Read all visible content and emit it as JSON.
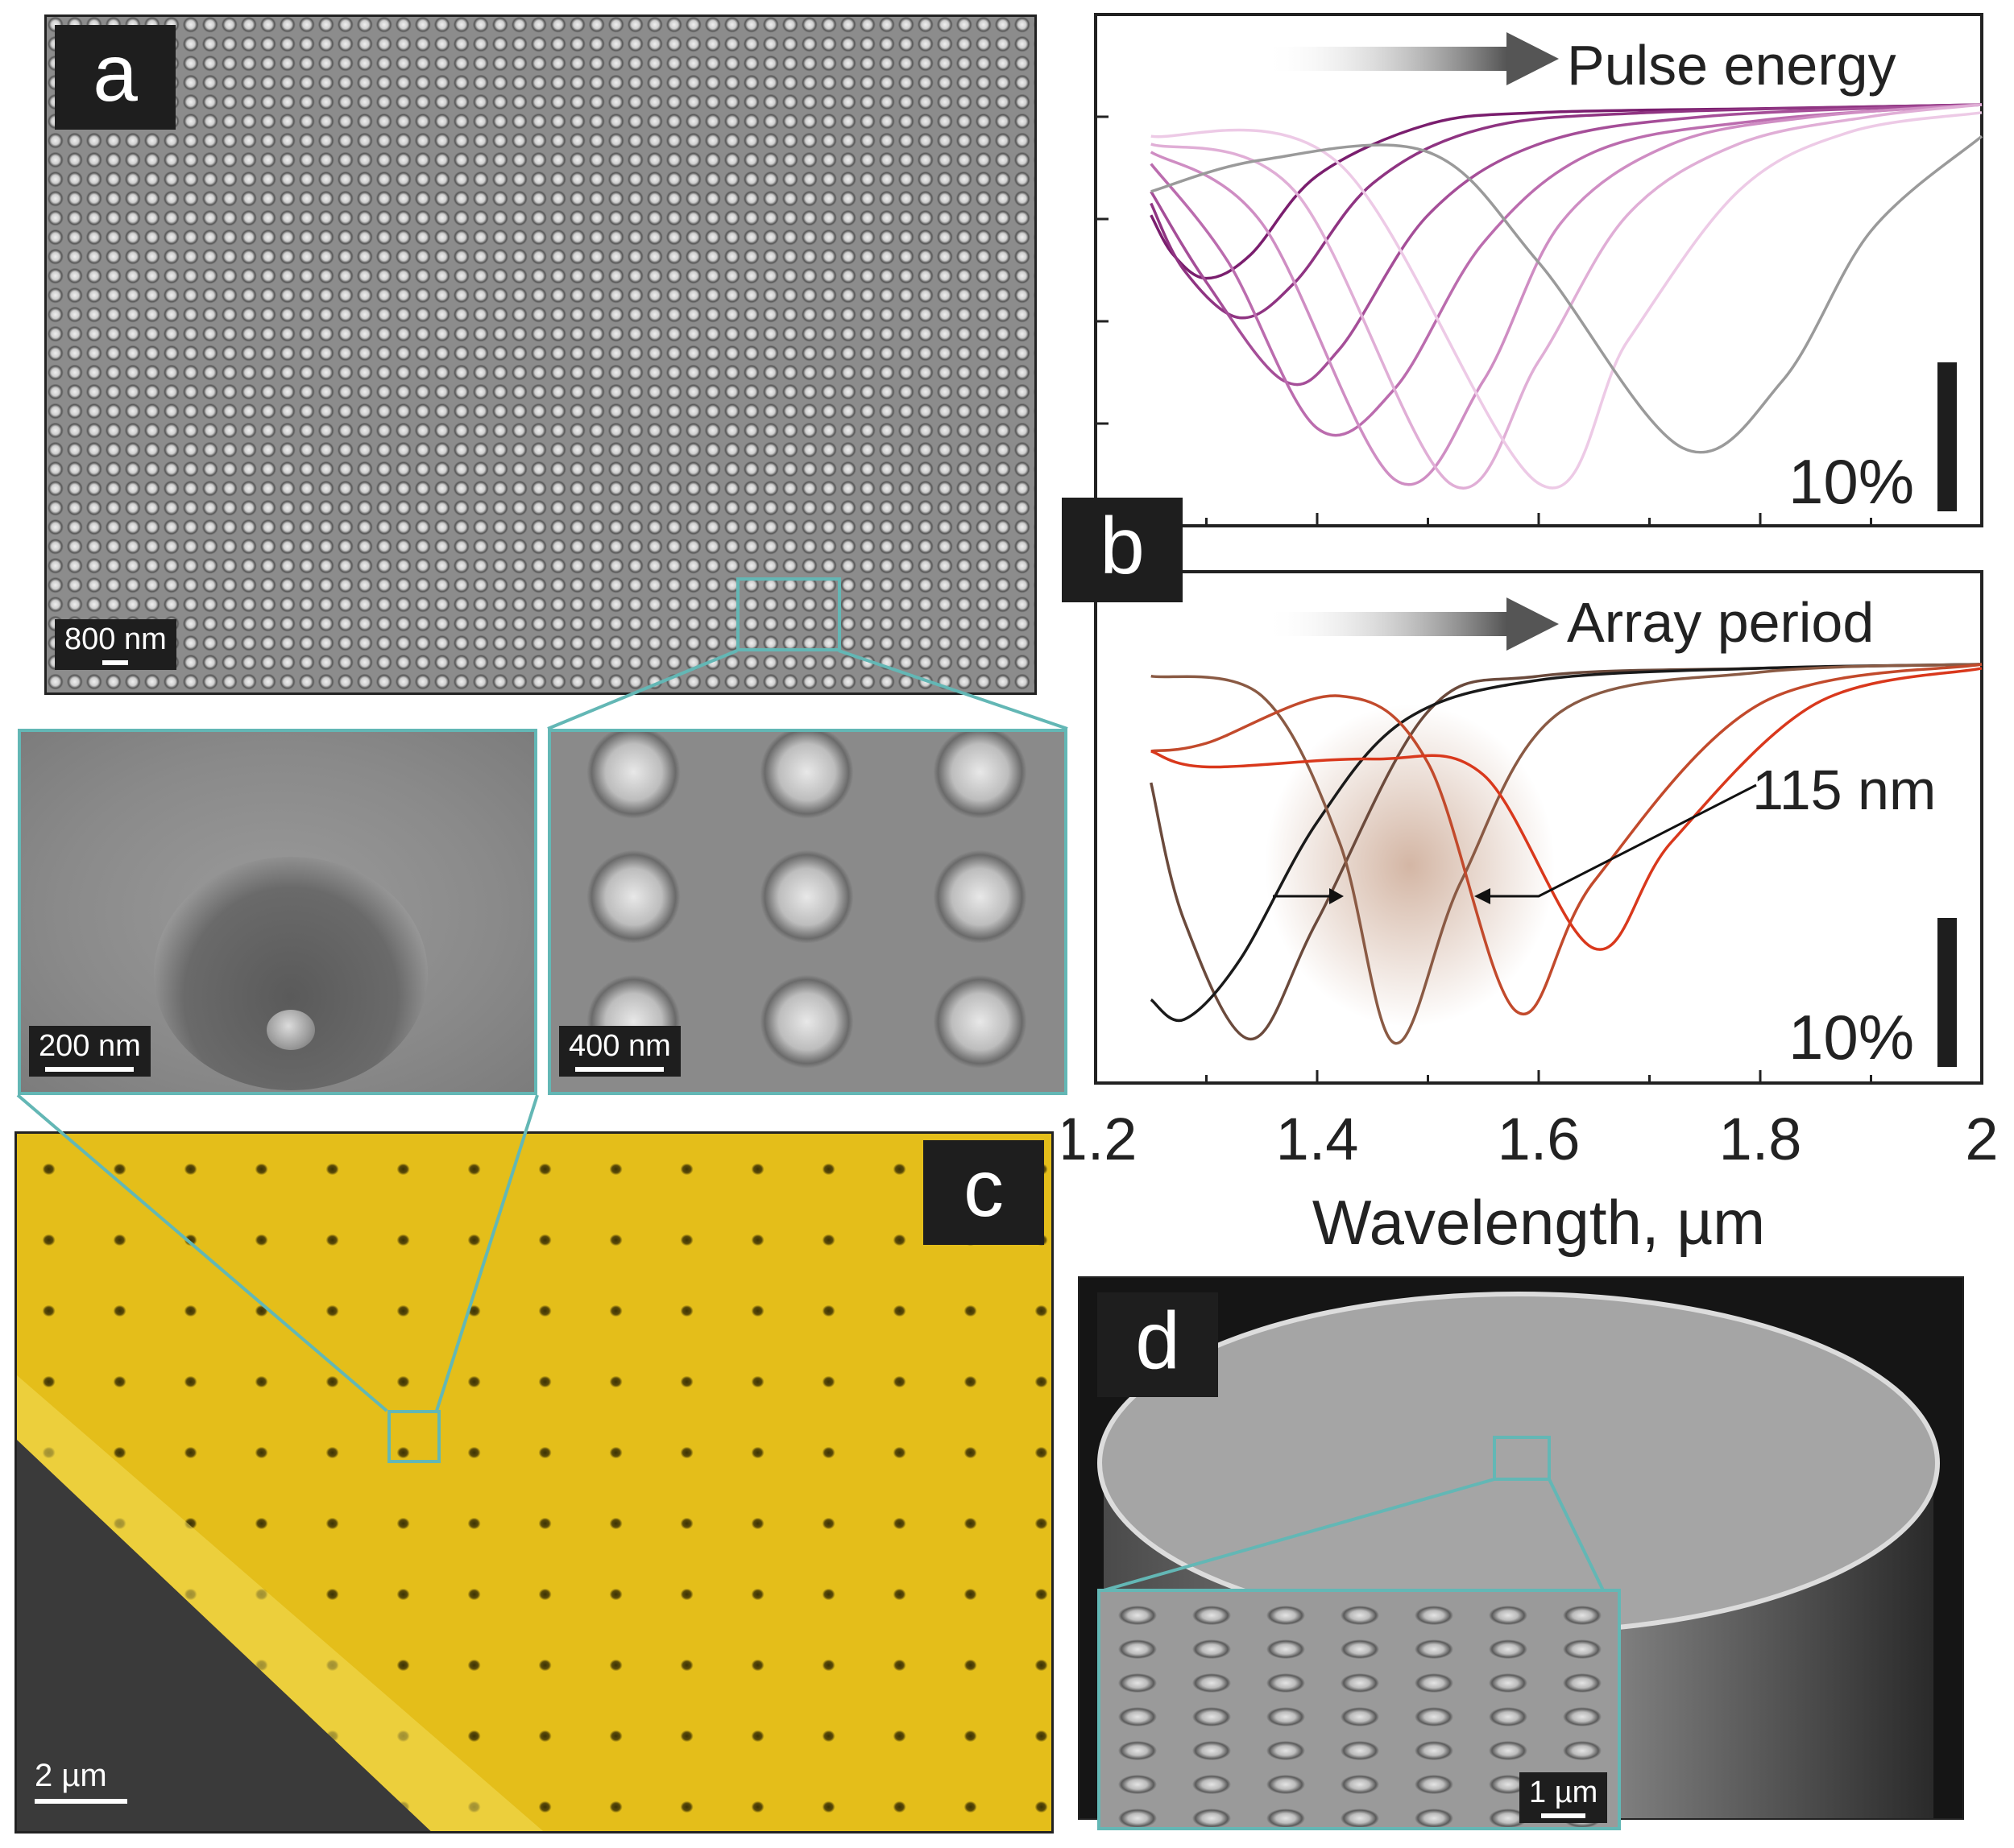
{
  "panels": {
    "a": {
      "label": "a",
      "scale_bar": "800 nm"
    },
    "a_inset_left": {
      "scale_bar": "200 nm"
    },
    "a_inset_right": {
      "scale_bar": "400 nm"
    },
    "b": {
      "label": "b"
    },
    "c": {
      "label": "c",
      "scale_bar": "2 µm"
    },
    "d": {
      "label": "d",
      "scale_bar": "1 µm"
    }
  },
  "colors": {
    "inset_frame": "#63b7b5",
    "label_bg": "#1e1e1e",
    "gold": "#e7c21a",
    "pink_series": [
      "#7a1e6e",
      "#8f3482",
      "#a54e98",
      "#bb6cae",
      "#cf8dc3",
      "#e0aed6",
      "#edcae6"
    ],
    "grey_series": "#9a9a9a",
    "brown_red_series": [
      "#6b4a3c",
      "#1a1a1a",
      "#8a5a44",
      "#c24a2c",
      "#d9381c"
    ]
  },
  "chart_data": [
    {
      "type": "line",
      "annotation": "Pulse energy",
      "scale_bar_label": "10%",
      "xlim": [
        1.2,
        2.0
      ],
      "series": [
        {
          "x": [
            1.25,
            1.27,
            1.3,
            1.34,
            1.4,
            1.5,
            1.6,
            1.8,
            2.0
          ],
          "y": [
            0.72,
            0.62,
            0.56,
            0.62,
            0.82,
            0.95,
            0.98,
            0.99,
            1.0
          ]
        },
        {
          "x": [
            1.25,
            1.28,
            1.33,
            1.38,
            1.45,
            1.55,
            1.7,
            2.0
          ],
          "y": [
            0.75,
            0.58,
            0.46,
            0.55,
            0.8,
            0.94,
            0.98,
            1.0
          ]
        },
        {
          "x": [
            1.25,
            1.3,
            1.37,
            1.42,
            1.5,
            1.6,
            1.75,
            2.0
          ],
          "y": [
            0.78,
            0.55,
            0.3,
            0.38,
            0.72,
            0.9,
            0.97,
            1.0
          ]
        },
        {
          "x": [
            1.25,
            1.32,
            1.4,
            1.47,
            1.55,
            1.65,
            1.8,
            2.0
          ],
          "y": [
            0.85,
            0.6,
            0.18,
            0.28,
            0.65,
            0.88,
            0.96,
            1.0
          ]
        },
        {
          "x": [
            1.25,
            1.35,
            1.47,
            1.55,
            1.62,
            1.72,
            1.85,
            2.0
          ],
          "y": [
            0.88,
            0.7,
            0.05,
            0.3,
            0.7,
            0.9,
            0.97,
            1.0
          ]
        },
        {
          "x": [
            1.25,
            1.38,
            1.52,
            1.6,
            1.68,
            1.78,
            1.9,
            2.0
          ],
          "y": [
            0.9,
            0.78,
            0.04,
            0.35,
            0.72,
            0.9,
            0.97,
            1.0
          ]
        },
        {
          "x": [
            1.25,
            1.42,
            1.6,
            1.68,
            1.78,
            1.88,
            2.0
          ],
          "y": [
            0.92,
            0.85,
            0.04,
            0.4,
            0.78,
            0.93,
            0.98
          ]
        },
        {
          "x": [
            1.25,
            1.35,
            1.5,
            1.6,
            1.73,
            1.82,
            1.9,
            2.0
          ],
          "y": [
            0.78,
            0.86,
            0.88,
            0.6,
            0.13,
            0.3,
            0.68,
            0.92
          ]
        }
      ]
    },
    {
      "type": "line",
      "annotation": "Array period",
      "annotation2": "115 nm",
      "scale_bar_label": "10%",
      "xlabel": "Wavelength, µm",
      "xlim": [
        1.2,
        2.0
      ],
      "xticks": [
        "1.2",
        "1.4",
        "1.6",
        "1.8",
        "2"
      ],
      "series": [
        {
          "x": [
            1.25,
            1.28,
            1.34,
            1.4,
            1.5,
            1.6,
            1.8,
            2.0
          ],
          "y": [
            0.7,
            0.35,
            0.05,
            0.35,
            0.88,
            0.97,
            0.99,
            1.0
          ]
        },
        {
          "x": [
            1.25,
            1.28,
            1.33,
            1.4,
            1.48,
            1.6,
            1.8,
            2.0
          ],
          "y": [
            0.15,
            0.1,
            0.25,
            0.6,
            0.86,
            0.96,
            0.99,
            1.0
          ]
        },
        {
          "x": [
            1.25,
            1.35,
            1.42,
            1.47,
            1.53,
            1.62,
            1.8,
            2.0
          ],
          "y": [
            0.97,
            0.92,
            0.55,
            0.04,
            0.45,
            0.88,
            0.98,
            1.0
          ]
        },
        {
          "x": [
            1.25,
            1.3,
            1.42,
            1.5,
            1.58,
            1.65,
            1.8,
            2.0
          ],
          "y": [
            0.78,
            0.8,
            0.92,
            0.75,
            0.12,
            0.45,
            0.9,
            1.0
          ]
        },
        {
          "x": [
            1.25,
            1.3,
            1.45,
            1.55,
            1.65,
            1.72,
            1.85,
            2.0
          ],
          "y": [
            0.78,
            0.74,
            0.76,
            0.72,
            0.28,
            0.55,
            0.9,
            0.99
          ]
        }
      ]
    }
  ]
}
